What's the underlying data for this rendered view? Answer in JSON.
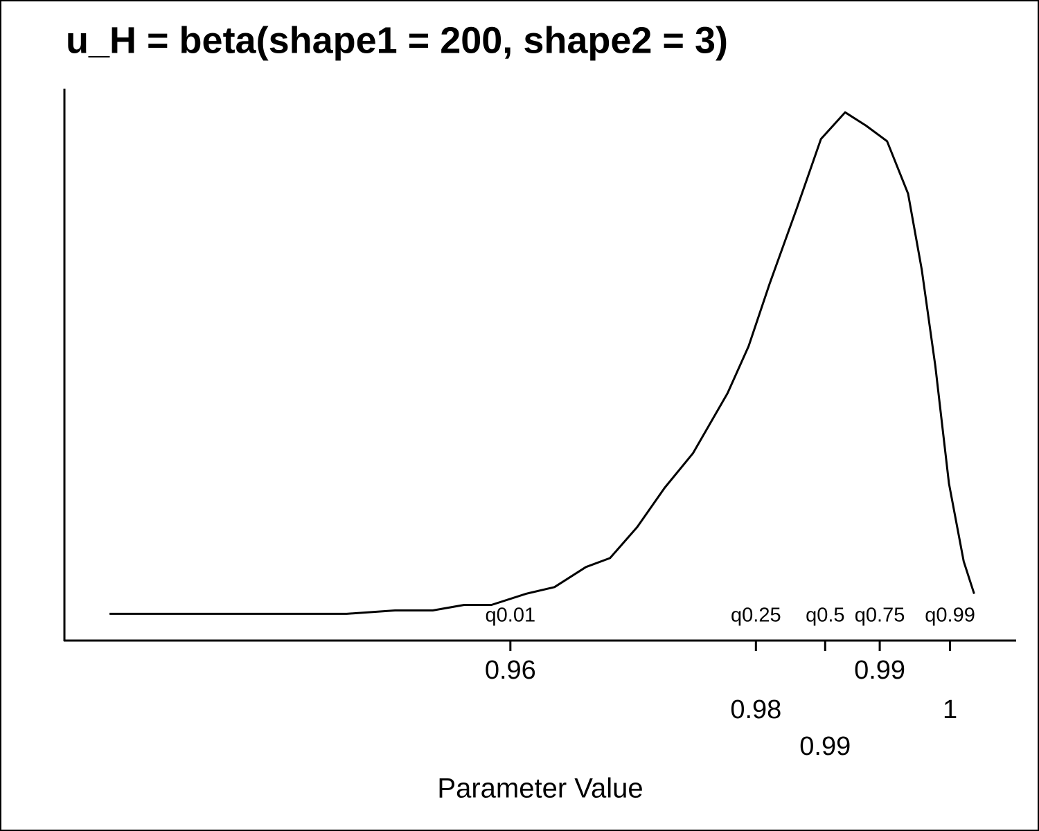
{
  "chart_data": {
    "type": "line",
    "title": "u_H = beta(shape1 = 200, shape2 = 3)",
    "x_label": "Parameter Value",
    "color": "#000000",
    "x": [
      0.9184,
      0.9304,
      0.9357,
      0.941,
      0.9456,
      0.9492,
      0.9522,
      0.9548,
      0.9581,
      0.9608,
      0.9638,
      0.9661,
      0.9687,
      0.9713,
      0.974,
      0.9773,
      0.9793,
      0.9813,
      0.9839,
      0.9862,
      0.9885,
      0.9905,
      0.9925,
      0.9945,
      0.9958,
      0.9971,
      0.9984,
      0.9998,
      1.0008
    ],
    "values": [
      0.1,
      0.1,
      0.1,
      0.1,
      0.4,
      0.4,
      0.9,
      0.9,
      1.9,
      2.5,
      4.3,
      5.1,
      7.9,
      11.4,
      14.5,
      19.9,
      24.1,
      29.7,
      36.5,
      42.7,
      45.1,
      43.9,
      42.5,
      37.8,
      31.0,
      22.3,
      11.8,
      4.8,
      1.9
    ],
    "xlim": [
      0.9141,
      1.0048
    ],
    "ylim": [
      -2.3,
      47.1
    ],
    "xticks": [
      {
        "value": 0.9566,
        "label": "0.96"
      },
      {
        "value": 0.98,
        "label": "0.98"
      },
      {
        "value": 0.9866,
        "label": "0.99"
      },
      {
        "value": 0.9918,
        "label": "0.99"
      },
      {
        "value": 0.9985,
        "label": "1"
      }
    ],
    "quantile_labels": [
      "q0.01",
      "q0.25",
      "q0.5",
      "q0.75",
      "q0.99"
    ]
  }
}
